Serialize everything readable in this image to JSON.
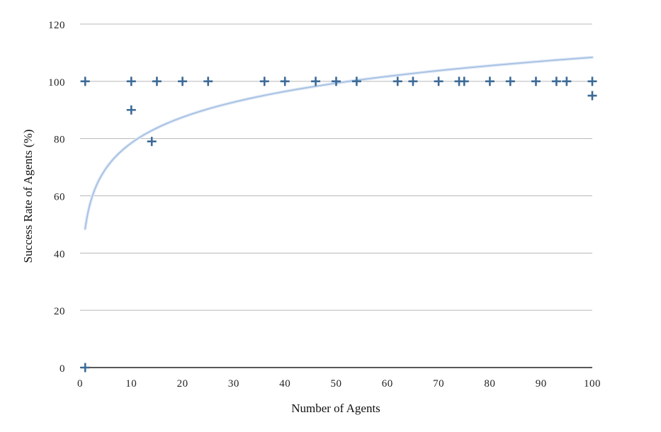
{
  "chart_data": {
    "type": "scatter",
    "title": "",
    "xlabel": "Number of Agents",
    "ylabel": "Success Rate of Agents (%)",
    "xlim": [
      0,
      100
    ],
    "ylim": [
      0,
      120
    ],
    "x_ticks": [
      "0",
      "10",
      "20",
      "30",
      "40",
      "50",
      "60",
      "70",
      "80",
      "90",
      "100"
    ],
    "y_ticks": [
      "0",
      "20",
      "40",
      "60",
      "80",
      "100",
      "120"
    ],
    "grid": "horizontal",
    "legend": "none",
    "series": [
      {
        "marker": "plus",
        "color": "#3c6a96",
        "points": [
          {
            "x": 1,
            "y": 0
          },
          {
            "x": 1,
            "y": 100
          },
          {
            "x": 10,
            "y": 100
          },
          {
            "x": 10,
            "y": 90
          },
          {
            "x": 14,
            "y": 79
          },
          {
            "x": 15,
            "y": 100
          },
          {
            "x": 20,
            "y": 100
          },
          {
            "x": 25,
            "y": 100
          },
          {
            "x": 36,
            "y": 100
          },
          {
            "x": 40,
            "y": 100
          },
          {
            "x": 46,
            "y": 100
          },
          {
            "x": 50,
            "y": 100
          },
          {
            "x": 54,
            "y": 100
          },
          {
            "x": 62,
            "y": 100
          },
          {
            "x": 65,
            "y": 100
          },
          {
            "x": 70,
            "y": 100
          },
          {
            "x": 74,
            "y": 100
          },
          {
            "x": 75,
            "y": 100
          },
          {
            "x": 80,
            "y": 100
          },
          {
            "x": 84,
            "y": 100
          },
          {
            "x": 89,
            "y": 100
          },
          {
            "x": 93,
            "y": 100
          },
          {
            "x": 95,
            "y": 100
          },
          {
            "x": 100,
            "y": 100
          },
          {
            "x": 100,
            "y": 95
          }
        ]
      }
    ],
    "trendline": {
      "type": "logarithmic",
      "color": "#a9c2e4",
      "x_range": [
        1,
        100
      ],
      "intercept": 48.5,
      "slope": 13.0
    }
  }
}
